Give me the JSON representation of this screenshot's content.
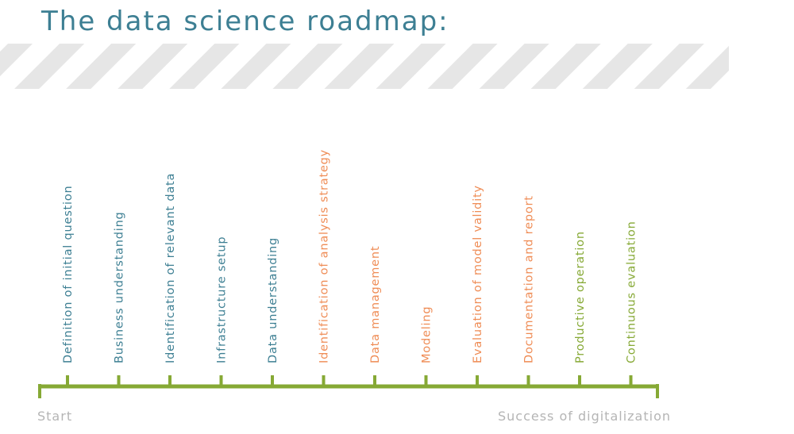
{
  "title": "The data science roadmap:",
  "steps": [
    {
      "label": "Definition of initial question",
      "color": "#3d7f93"
    },
    {
      "label": "Business understanding",
      "color": "#3d7f93"
    },
    {
      "label": "Identification of relevant data",
      "color": "#3d7f93"
    },
    {
      "label": "Infrastructure setup",
      "color": "#3d7f93"
    },
    {
      "label": "Data understanding",
      "color": "#3d7f93"
    },
    {
      "label": "Identification of analysis strategy",
      "color": "#ef8c55"
    },
    {
      "label": "Data management",
      "color": "#ef8c55"
    },
    {
      "label": "Modeling",
      "color": "#ef8c55"
    },
    {
      "label": "Evaluation of model validity",
      "color": "#ef8c55"
    },
    {
      "label": "Documentation and report",
      "color": "#ef8c55"
    },
    {
      "label": "Productive operation",
      "color": "#86a935"
    },
    {
      "label": "Continuous evaluation",
      "color": "#86a935"
    }
  ],
  "start": "Start",
  "end": "Success of digitalization"
}
